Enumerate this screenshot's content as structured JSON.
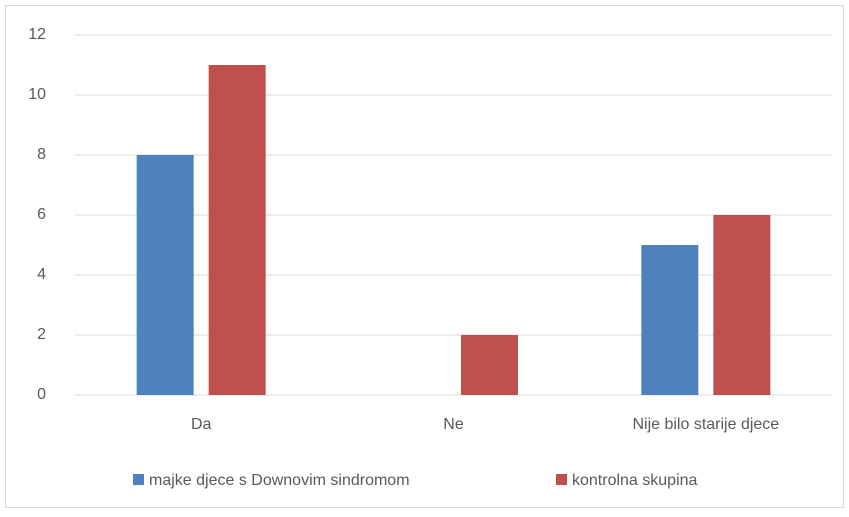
{
  "chart_data": {
    "type": "bar",
    "categories": [
      "Da",
      "Ne",
      "Nije bilo starije djece"
    ],
    "series": [
      {
        "name": "majke djece s Downovim sindromom",
        "color": "#4f81bd",
        "values": [
          8,
          0,
          5
        ]
      },
      {
        "name": "kontrolna skupina",
        "color": "#c0504d",
        "values": [
          11,
          2,
          6
        ]
      }
    ],
    "ylim": [
      0,
      12
    ],
    "yticks": [
      0,
      2,
      4,
      6,
      8,
      10,
      12
    ],
    "grid": true,
    "legend": "bottom"
  }
}
